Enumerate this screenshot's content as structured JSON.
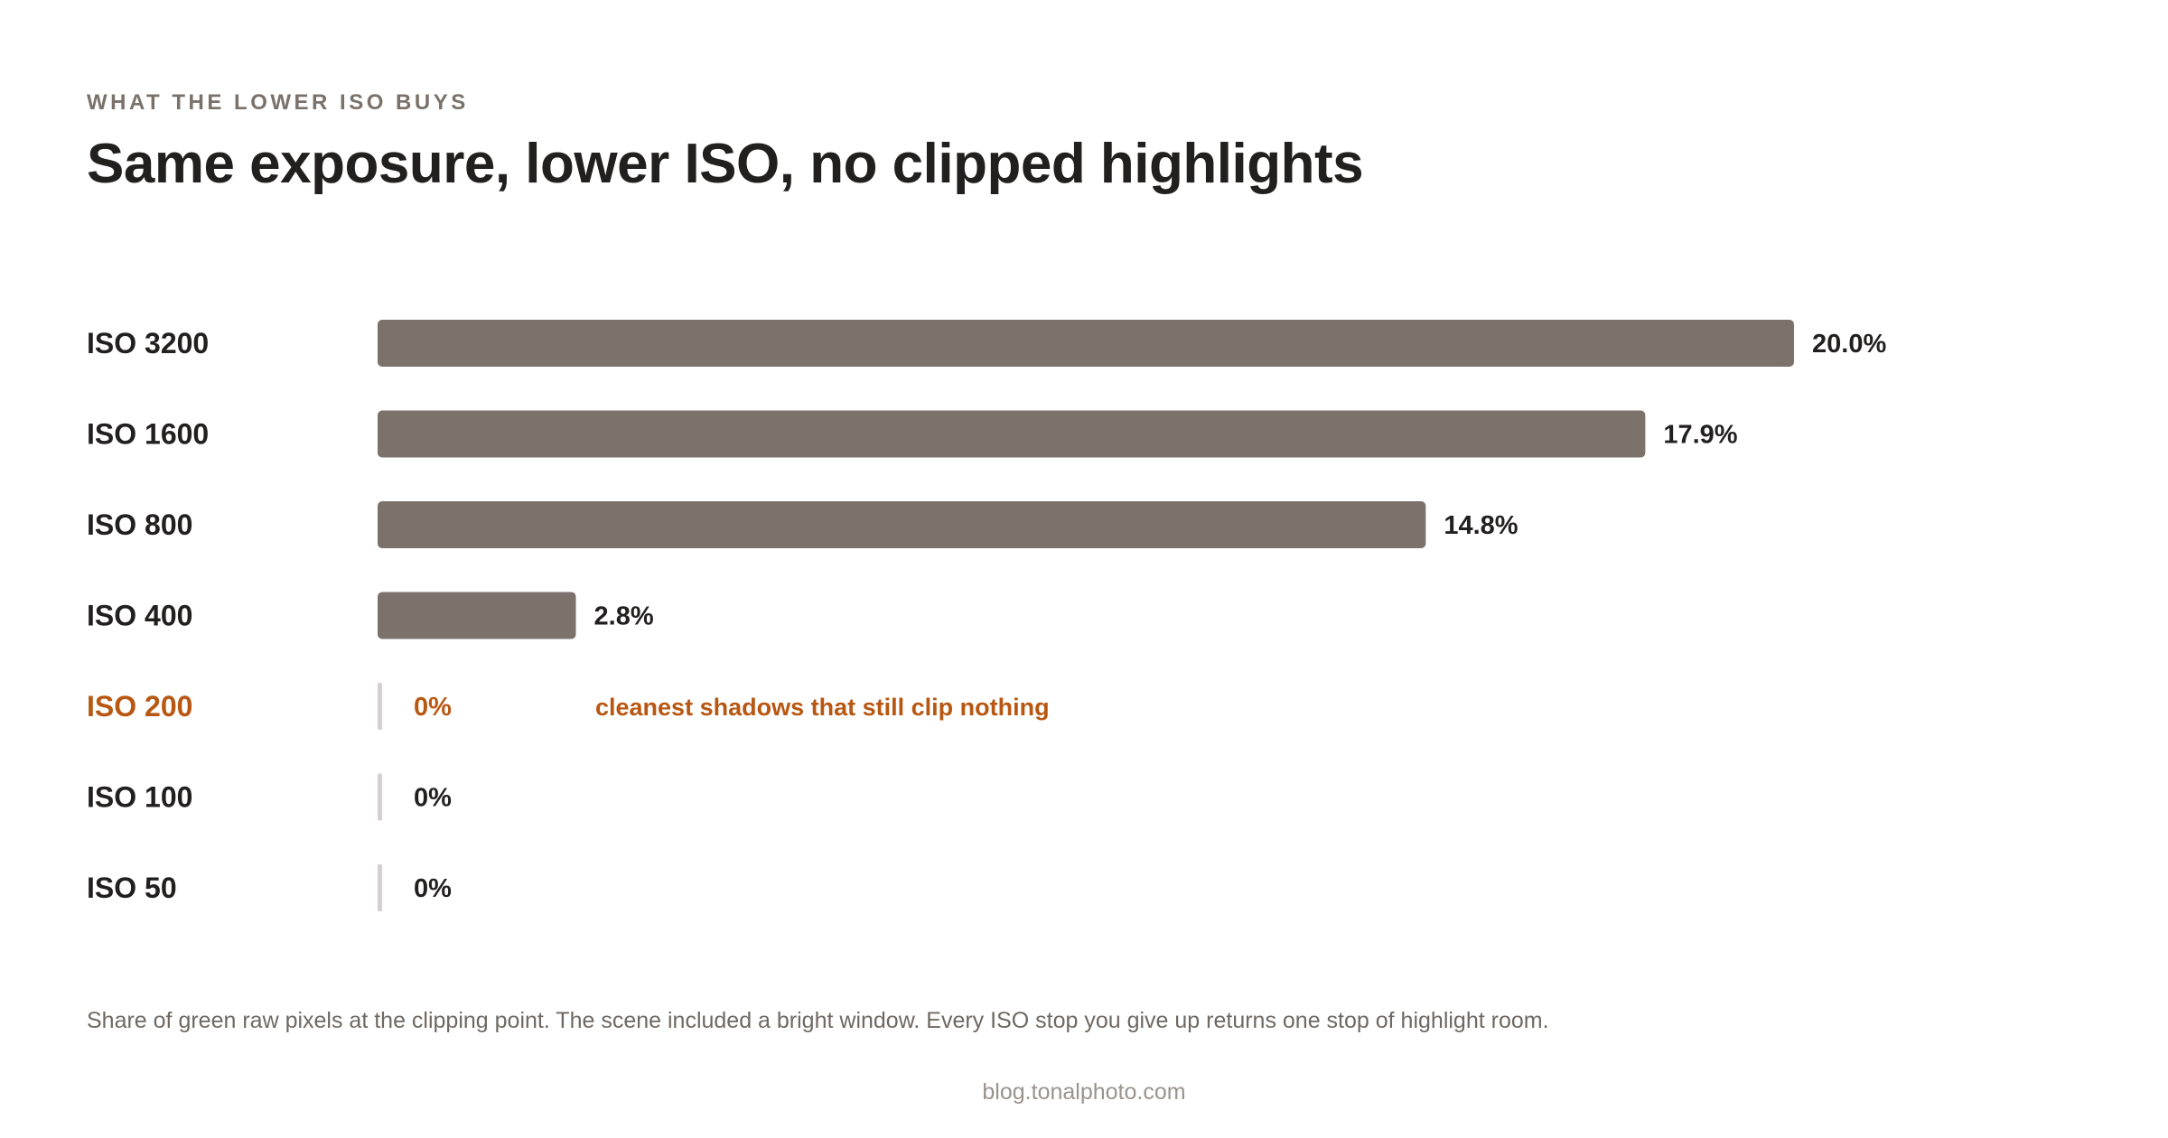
{
  "header": {
    "eyebrow": "WHAT THE LOWER ISO BUYS",
    "title": "Same exposure, lower ISO, no clipped highlights"
  },
  "footer": {
    "note": "Share of green raw pixels at the clipping point. The scene included a bright window. Every ISO stop you give up returns one stop of highlight room.",
    "source": "blog.tonalphoto.com"
  },
  "colors": {
    "bar": "#7b726c",
    "highlight": "#b85712",
    "zero_tick": "#d6d0d0",
    "text": "#221f1f"
  },
  "chart_data": {
    "type": "bar",
    "orientation": "horizontal",
    "categories": [
      "ISO 3200",
      "ISO 1600",
      "ISO 800",
      "ISO 400",
      "ISO 200",
      "ISO 100",
      "ISO 50"
    ],
    "values": [
      20.0,
      17.9,
      14.8,
      2.8,
      0,
      0,
      0
    ],
    "value_labels": [
      "20.0%",
      "17.9%",
      "14.8%",
      "2.8%",
      "0%",
      "0%",
      "0%"
    ],
    "unit": "%",
    "xlim": [
      0,
      20
    ],
    "grid": false,
    "legend": "none",
    "highlight_category": "ISO 200",
    "annotation": {
      "category": "ISO 200",
      "text": "cleanest shadows that still clip nothing"
    }
  }
}
